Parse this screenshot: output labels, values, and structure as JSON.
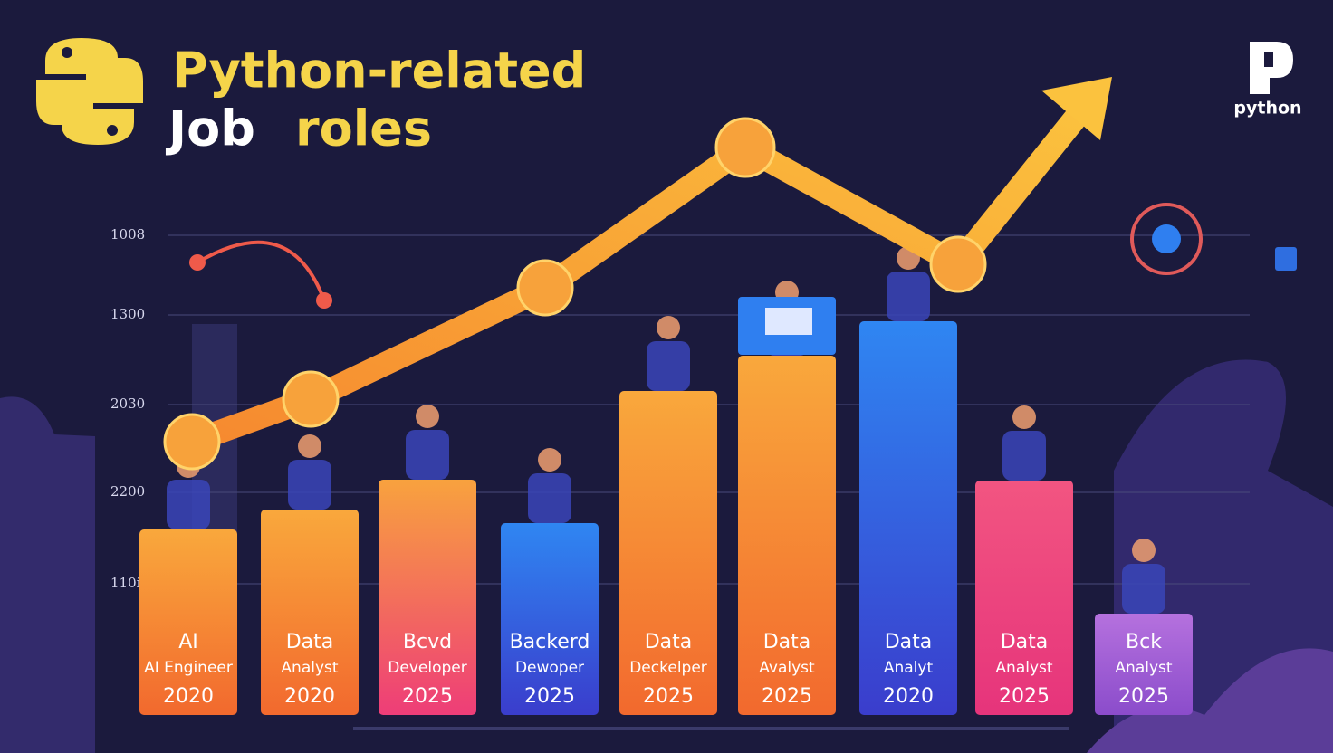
{
  "header": {
    "title_line1": "Python-related",
    "title_job": "Job",
    "title_roles": "roles"
  },
  "logo": "python",
  "axis_labels": [
    "1008",
    "1300",
    "2030",
    "2200",
    "110i"
  ],
  "bars": [
    {
      "label": "AI",
      "sublabel": "AI Engineer",
      "year": "2020"
    },
    {
      "label": "Data",
      "sublabel": "Analyst",
      "year": "2020"
    },
    {
      "label": "Bcvd",
      "sublabel": "Developer",
      "year": "2025"
    },
    {
      "label": "Backerd",
      "sublabel": "Dewoper",
      "year": "2025"
    },
    {
      "label": "Data",
      "sublabel": "Deckelper",
      "year": "2025"
    },
    {
      "label": "Data",
      "sublabel": "Avalyst",
      "year": "2025"
    },
    {
      "label": "Data",
      "sublabel": "Analyt",
      "year": "2020"
    },
    {
      "label": "Data",
      "sublabel": "Analyst",
      "year": "2025"
    },
    {
      "label": "Bck",
      "sublabel": "Analyst",
      "year": "2025"
    }
  ]
}
